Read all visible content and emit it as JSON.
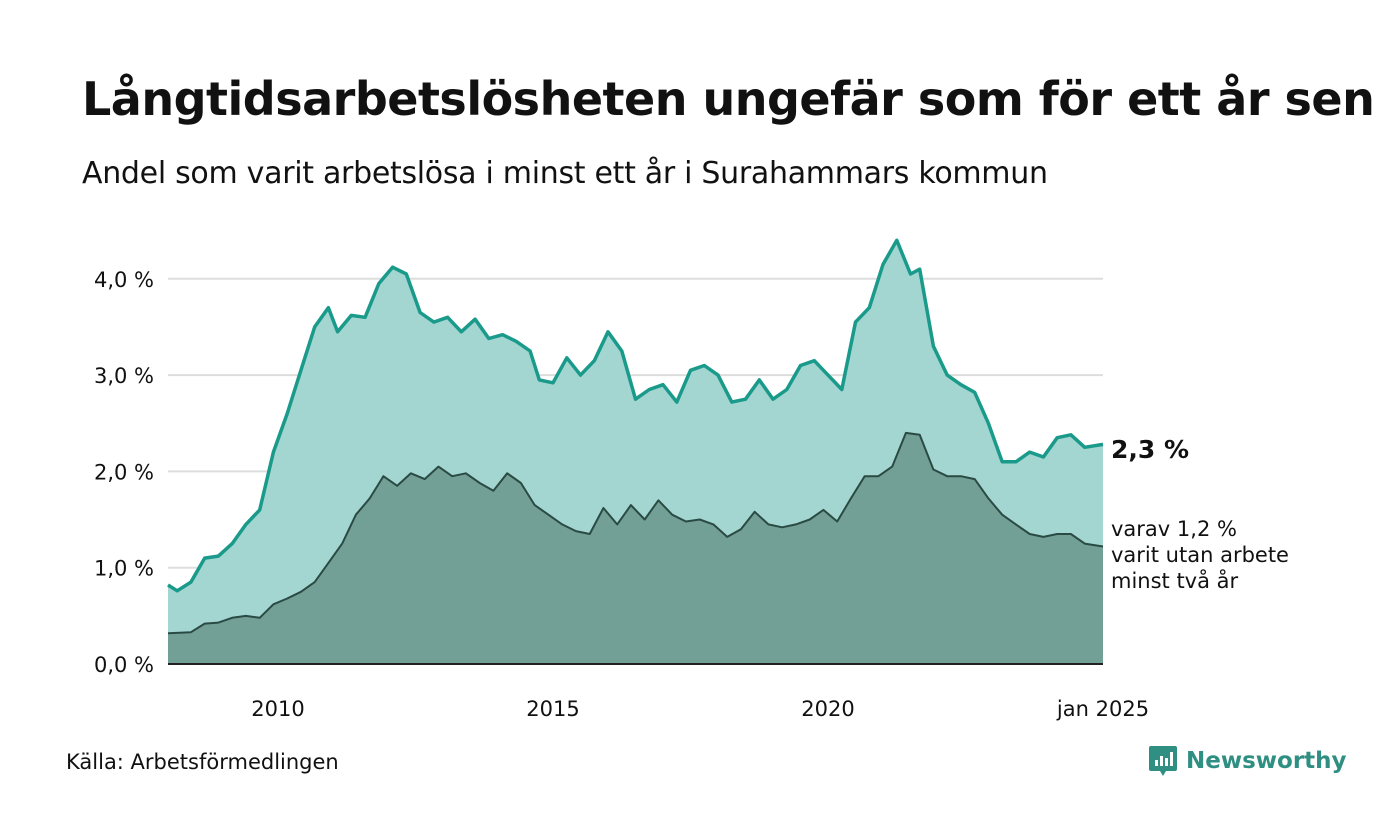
{
  "title": "Långtidsarbetslösheten ungefär som för ett år sen",
  "subtitle": "Andel som varit arbetslösa i minst ett år i Surahammars kommun",
  "source": "Källa: Arbetsförmedlingen",
  "brand": "Newsworthy",
  "colors": {
    "upper_fill": "#a3d6d1",
    "upper_line": "#1a9a8a",
    "lower_fill": "#73a096",
    "lower_line": "#2a4a44",
    "grid": "#dddddd",
    "brand": "#2f8f82"
  },
  "chart_data": {
    "type": "area",
    "x_start": "2008-01",
    "x_end": "2025-01",
    "xticks": [
      {
        "x": "2010-01",
        "label": "2010"
      },
      {
        "x": "2015-01",
        "label": "2015"
      },
      {
        "x": "2020-01",
        "label": "2020"
      },
      {
        "x": "2025-01",
        "label": "jan 2025"
      }
    ],
    "yticks": [
      {
        "value": 0,
        "label": "0,0 %"
      },
      {
        "value": 1,
        "label": "1,0 %"
      },
      {
        "value": 2,
        "label": "2,0 %"
      },
      {
        "value": 3,
        "label": "3,0 %"
      },
      {
        "value": 4,
        "label": "4,0 %"
      }
    ],
    "ylim": [
      0,
      4.5
    ],
    "grid": true,
    "series": [
      {
        "key": "minst_ett_ar",
        "points": [
          [
            "2008-01",
            0.82
          ],
          [
            "2008-03",
            0.76
          ],
          [
            "2008-06",
            0.85
          ],
          [
            "2008-09",
            1.1
          ],
          [
            "2008-12",
            1.12
          ],
          [
            "2009-03",
            1.25
          ],
          [
            "2009-06",
            1.45
          ],
          [
            "2009-09",
            1.6
          ],
          [
            "2009-12",
            2.2
          ],
          [
            "2010-03",
            2.6
          ],
          [
            "2010-06",
            3.05
          ],
          [
            "2010-09",
            3.5
          ],
          [
            "2010-12",
            3.7
          ],
          [
            "2011-02",
            3.45
          ],
          [
            "2011-05",
            3.62
          ],
          [
            "2011-08",
            3.6
          ],
          [
            "2011-11",
            3.95
          ],
          [
            "2012-02",
            4.12
          ],
          [
            "2012-05",
            4.05
          ],
          [
            "2012-08",
            3.65
          ],
          [
            "2012-11",
            3.55
          ],
          [
            "2013-02",
            3.6
          ],
          [
            "2013-05",
            3.45
          ],
          [
            "2013-08",
            3.58
          ],
          [
            "2013-11",
            3.38
          ],
          [
            "2014-02",
            3.42
          ],
          [
            "2014-05",
            3.35
          ],
          [
            "2014-08",
            3.25
          ],
          [
            "2014-10",
            2.95
          ],
          [
            "2015-01",
            2.92
          ],
          [
            "2015-04",
            3.18
          ],
          [
            "2015-07",
            3.0
          ],
          [
            "2015-10",
            3.15
          ],
          [
            "2016-01",
            3.45
          ],
          [
            "2016-04",
            3.25
          ],
          [
            "2016-07",
            2.75
          ],
          [
            "2016-10",
            2.85
          ],
          [
            "2017-01",
            2.9
          ],
          [
            "2017-04",
            2.72
          ],
          [
            "2017-07",
            3.05
          ],
          [
            "2017-10",
            3.1
          ],
          [
            "2018-01",
            3.0
          ],
          [
            "2018-04",
            2.72
          ],
          [
            "2018-07",
            2.75
          ],
          [
            "2018-10",
            2.95
          ],
          [
            "2019-01",
            2.75
          ],
          [
            "2019-04",
            2.85
          ],
          [
            "2019-07",
            3.1
          ],
          [
            "2019-10",
            3.15
          ],
          [
            "2020-01",
            3.0
          ],
          [
            "2020-04",
            2.85
          ],
          [
            "2020-07",
            3.55
          ],
          [
            "2020-10",
            3.7
          ],
          [
            "2021-01",
            4.15
          ],
          [
            "2021-04",
            4.4
          ],
          [
            "2021-07",
            4.05
          ],
          [
            "2021-09",
            4.1
          ],
          [
            "2021-12",
            3.3
          ],
          [
            "2022-03",
            3.0
          ],
          [
            "2022-06",
            2.9
          ],
          [
            "2022-09",
            2.82
          ],
          [
            "2022-12",
            2.5
          ],
          [
            "2023-03",
            2.1
          ],
          [
            "2023-06",
            2.1
          ],
          [
            "2023-09",
            2.2
          ],
          [
            "2023-12",
            2.15
          ],
          [
            "2024-03",
            2.35
          ],
          [
            "2024-06",
            2.38
          ],
          [
            "2024-09",
            2.25
          ],
          [
            "2025-01",
            2.28
          ]
        ]
      },
      {
        "key": "minst_tva_ar",
        "points": [
          [
            "2008-01",
            0.32
          ],
          [
            "2008-06",
            0.33
          ],
          [
            "2008-09",
            0.42
          ],
          [
            "2008-12",
            0.43
          ],
          [
            "2009-03",
            0.48
          ],
          [
            "2009-06",
            0.5
          ],
          [
            "2009-09",
            0.48
          ],
          [
            "2009-12",
            0.62
          ],
          [
            "2010-03",
            0.68
          ],
          [
            "2010-06",
            0.75
          ],
          [
            "2010-09",
            0.85
          ],
          [
            "2010-12",
            1.05
          ],
          [
            "2011-03",
            1.25
          ],
          [
            "2011-06",
            1.55
          ],
          [
            "2011-09",
            1.72
          ],
          [
            "2011-12",
            1.95
          ],
          [
            "2012-03",
            1.85
          ],
          [
            "2012-06",
            1.98
          ],
          [
            "2012-09",
            1.92
          ],
          [
            "2012-12",
            2.05
          ],
          [
            "2013-03",
            1.95
          ],
          [
            "2013-06",
            1.98
          ],
          [
            "2013-09",
            1.88
          ],
          [
            "2013-12",
            1.8
          ],
          [
            "2014-03",
            1.98
          ],
          [
            "2014-06",
            1.88
          ],
          [
            "2014-09",
            1.65
          ],
          [
            "2014-12",
            1.55
          ],
          [
            "2015-03",
            1.45
          ],
          [
            "2015-06",
            1.38
          ],
          [
            "2015-09",
            1.35
          ],
          [
            "2015-12",
            1.62
          ],
          [
            "2016-03",
            1.45
          ],
          [
            "2016-06",
            1.65
          ],
          [
            "2016-09",
            1.5
          ],
          [
            "2016-12",
            1.7
          ],
          [
            "2017-03",
            1.55
          ],
          [
            "2017-06",
            1.48
          ],
          [
            "2017-09",
            1.5
          ],
          [
            "2017-12",
            1.45
          ],
          [
            "2018-03",
            1.32
          ],
          [
            "2018-06",
            1.4
          ],
          [
            "2018-09",
            1.58
          ],
          [
            "2018-12",
            1.45
          ],
          [
            "2019-03",
            1.42
          ],
          [
            "2019-06",
            1.45
          ],
          [
            "2019-09",
            1.5
          ],
          [
            "2019-12",
            1.6
          ],
          [
            "2020-03",
            1.48
          ],
          [
            "2020-06",
            1.72
          ],
          [
            "2020-09",
            1.95
          ],
          [
            "2020-12",
            1.95
          ],
          [
            "2021-03",
            2.05
          ],
          [
            "2021-06",
            2.4
          ],
          [
            "2021-09",
            2.38
          ],
          [
            "2021-12",
            2.02
          ],
          [
            "2022-03",
            1.95
          ],
          [
            "2022-06",
            1.95
          ],
          [
            "2022-09",
            1.92
          ],
          [
            "2022-12",
            1.72
          ],
          [
            "2023-03",
            1.55
          ],
          [
            "2023-06",
            1.45
          ],
          [
            "2023-09",
            1.35
          ],
          [
            "2023-12",
            1.32
          ],
          [
            "2024-03",
            1.35
          ],
          [
            "2024-06",
            1.35
          ],
          [
            "2024-09",
            1.25
          ],
          [
            "2025-01",
            1.22
          ]
        ]
      }
    ],
    "annotations": {
      "value_label": "2,3 %",
      "sub_label_lines": [
        "varav 1,2 %",
        "varit utan arbete",
        "minst två år"
      ]
    }
  }
}
